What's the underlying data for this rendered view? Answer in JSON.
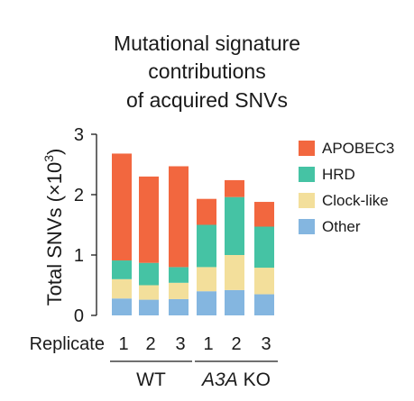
{
  "chart_data": {
    "type": "bar",
    "stacked": true,
    "title_lines": [
      "Mutational signature",
      "contributions",
      "of acquired SNVs"
    ],
    "ylabel": "Total SNVs (×10",
    "ylabel_superscript": "3",
    "ylabel_close": ")",
    "ylim": [
      0,
      3
    ],
    "yticks": [
      "0",
      "1",
      "2",
      "3"
    ],
    "xlabel": "Replicate",
    "categories": [
      "1",
      "2",
      "3",
      "1",
      "2",
      "3"
    ],
    "groups": [
      {
        "label": "WT",
        "italic_part": "",
        "rest": "WT",
        "members": [
          0,
          1,
          2
        ]
      },
      {
        "label": "A3A KO",
        "italic_part": "A3A",
        "rest": " KO",
        "members": [
          3,
          4,
          5
        ]
      }
    ],
    "series": [
      {
        "name": "Other",
        "color": "#84B6E0",
        "values": [
          0.28,
          0.26,
          0.27,
          0.4,
          0.42,
          0.35
        ]
      },
      {
        "name": "Clock-like",
        "color": "#F3DF9B",
        "values": [
          0.32,
          0.24,
          0.27,
          0.4,
          0.58,
          0.44
        ]
      },
      {
        "name": "HRD",
        "color": "#45C3A4",
        "values": [
          0.31,
          0.37,
          0.26,
          0.7,
          0.96,
          0.68
        ]
      },
      {
        "name": "APOBEC3",
        "color": "#F2673F",
        "values": [
          1.77,
          1.43,
          1.67,
          0.43,
          0.28,
          0.41
        ]
      }
    ],
    "legend_order": [
      "APOBEC3",
      "HRD",
      "Clock-like",
      "Other"
    ],
    "legend_position": "right",
    "grid": false
  }
}
